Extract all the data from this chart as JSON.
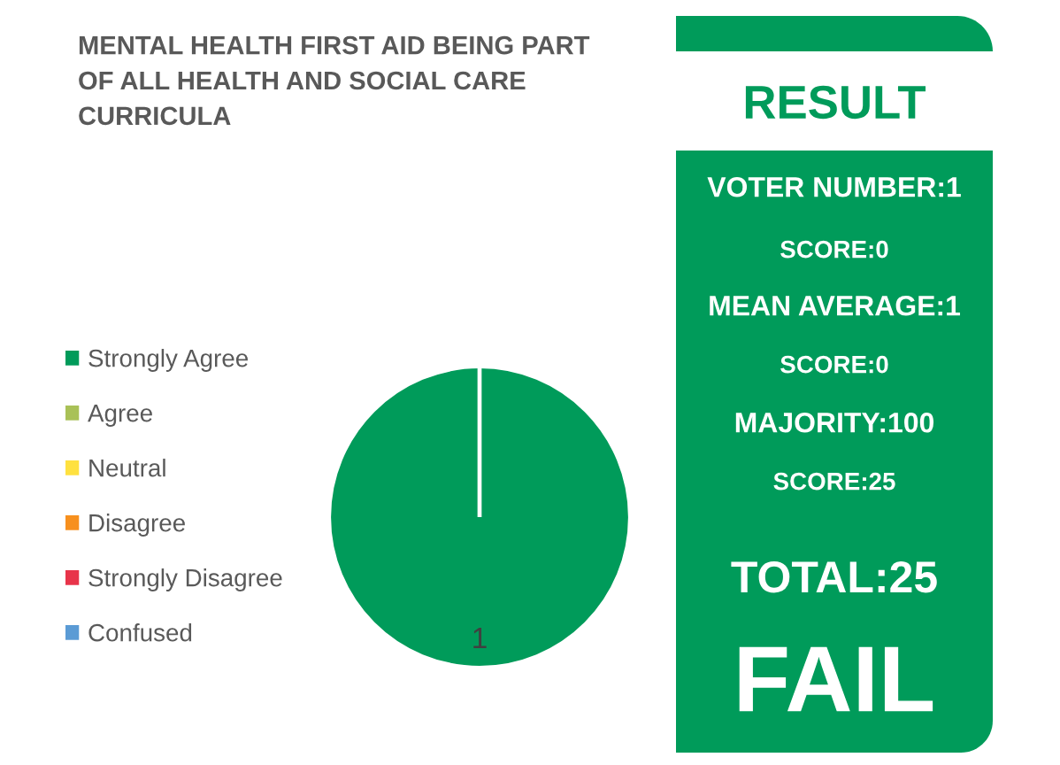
{
  "chart_data": [
    {
      "type": "pie",
      "title": "MENTAL HEALTH FIRST AID BEING PART\nOF ALL HEALTH AND SOCIAL CARE\nCURRICULA",
      "categories": [
        "Strongly Agree",
        "Agree",
        "Neutral",
        "Disagree",
        "Strongly Disagree",
        "Confused"
      ],
      "values": [
        1,
        0,
        0,
        0,
        0,
        0
      ],
      "colors": [
        "#009b5a",
        "#a9c157",
        "#ffe13f",
        "#f7901e",
        "#e8344a",
        "#5b9bd5"
      ],
      "value_labels": [
        "1",
        null,
        null,
        null,
        null,
        null
      ],
      "legend": "left"
    },
    {
      "type": "other",
      "title": "RESULT",
      "annotations": [
        "VOTER NUMBER:1",
        "SCORE:0",
        "MEAN AVERAGE:1",
        "SCORE:0",
        "MAJORITY:100",
        "SCORE:25",
        "TOTAL:25",
        "FAIL"
      ]
    }
  ]
}
